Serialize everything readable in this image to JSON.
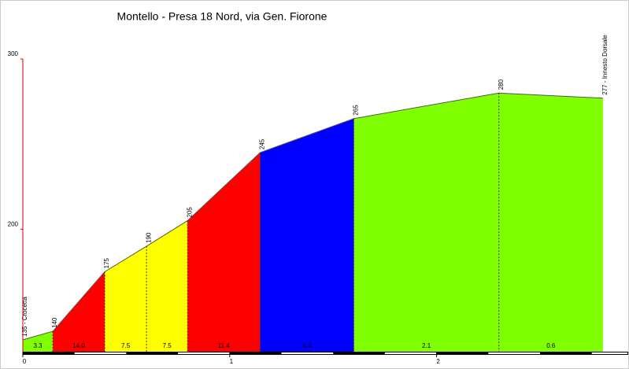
{
  "chart_data": {
    "type": "area",
    "title": "Montello - Presa 18 Nord, via Gen. Fiorone",
    "x": [
      0,
      0.145,
      0.396,
      0.598,
      0.796,
      1.147,
      1.6,
      2.301,
      2.804
    ],
    "values": [
      135,
      140,
      175,
      190,
      205,
      245,
      265,
      280,
      277
    ],
    "value_labels": [
      "135 - Crocetta",
      "140",
      "175",
      "190",
      "205",
      "245",
      "265",
      "280",
      "277 - Innesto Dorsale"
    ],
    "segment_labels": [
      "3.3",
      "14.0",
      "7.5",
      "7.5",
      "11.4",
      "4.4",
      "2.1",
      "0.6"
    ],
    "segment_colors": [
      "#80ff00",
      "#ff0000",
      "#ffff00",
      "#ffff00",
      "#ff0000",
      "#0000ff",
      "#80ff00",
      "#80ff00"
    ],
    "xlim": [
      0,
      2.93
    ],
    "ylim": [
      128,
      300
    ],
    "xticks": [
      0,
      1,
      2
    ],
    "yticks": [
      200,
      300
    ]
  }
}
